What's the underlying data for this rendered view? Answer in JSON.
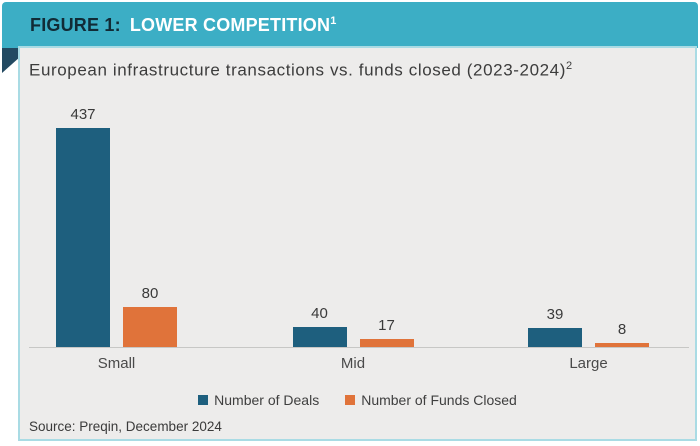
{
  "banner": {
    "figure_label": "FIGURE 1:",
    "title": "LOWER COMPETITION",
    "title_superscript": "1"
  },
  "card": {
    "subtitle": "European infrastructure transactions vs. funds closed (2023-2024)",
    "subtitle_superscript": "2",
    "source": "Source: Preqin, December 2024"
  },
  "chart_data": {
    "type": "bar",
    "title": "European infrastructure transactions vs. funds closed (2023-2024)",
    "categories": [
      "Small",
      "Mid",
      "Large"
    ],
    "series": [
      {
        "name": "Number of Deals",
        "color": "#1e5f7e",
        "values": [
          437,
          40,
          39
        ]
      },
      {
        "name": "Number of Funds Closed",
        "color": "#e0733a",
        "values": [
          80,
          17,
          8
        ]
      }
    ],
    "xlabel": "",
    "ylabel": "",
    "ylim": [
      0,
      460
    ],
    "grid": false,
    "value_labels": true,
    "legend_position": "bottom"
  },
  "colors": {
    "banner_teal": "#3caec5",
    "fold_navy": "#234a62",
    "card_background": "#edeceb",
    "card_border": "#a9dbe4",
    "axis_line": "#c7c7c5"
  }
}
